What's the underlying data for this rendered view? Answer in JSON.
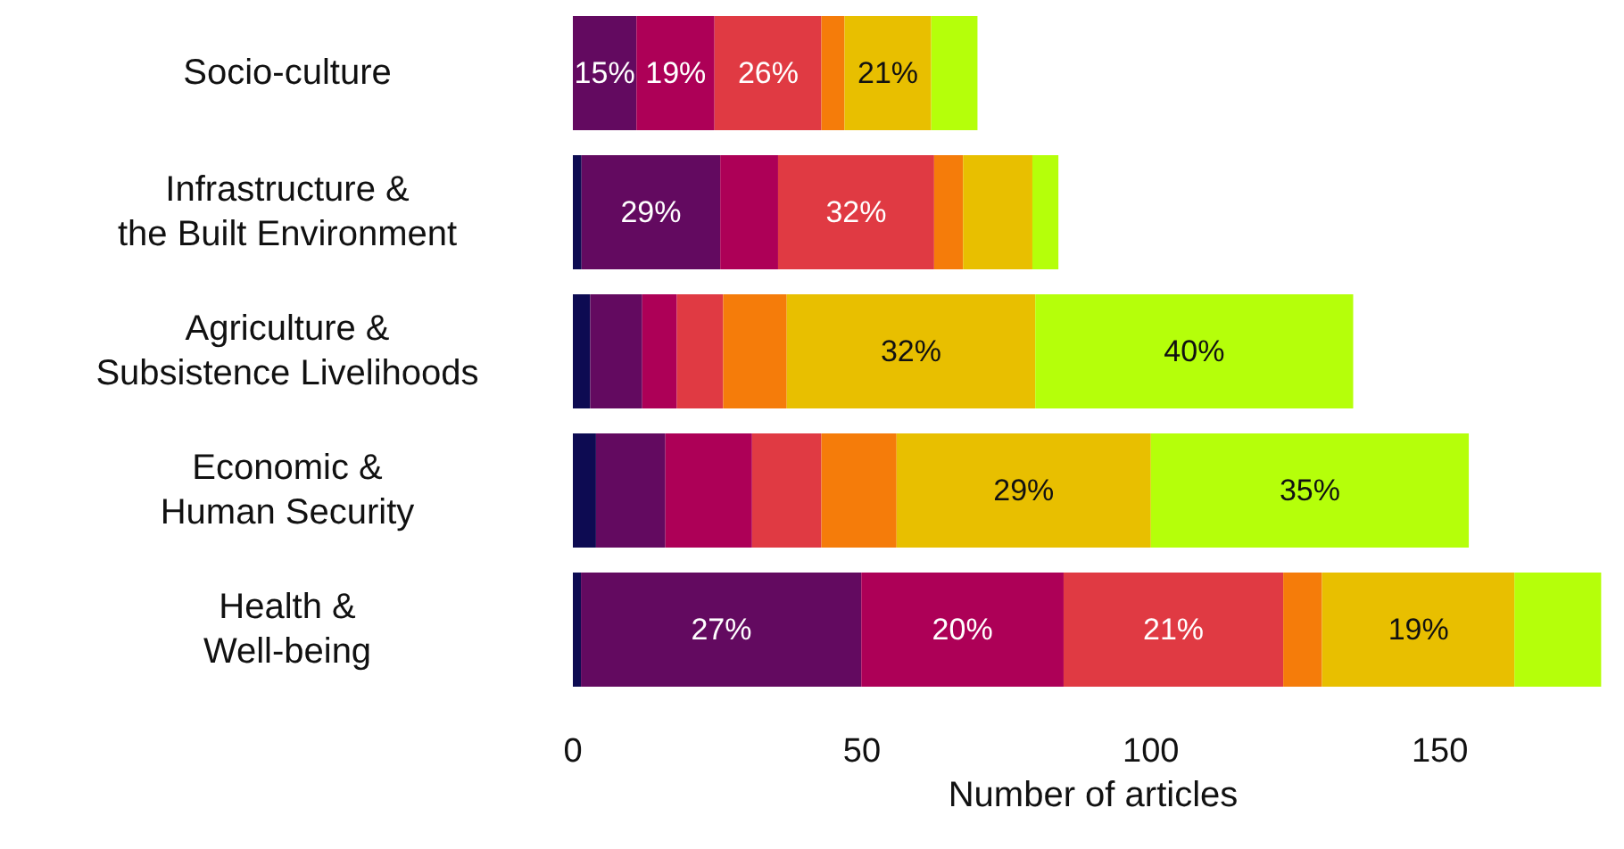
{
  "chart_data": {
    "type": "bar",
    "orientation": "horizontal",
    "stacked": true,
    "xlabel": "Number of articles",
    "categories": [
      "Socio-culture",
      "Infrastructure &\nthe Built Environment",
      "Agriculture &\nSubsistence Livelihoods",
      "Economic &\nHuman Security",
      "Health &\nWell-being"
    ],
    "xlim": [
      0,
      180
    ],
    "xticks": [
      0,
      50,
      100,
      150
    ],
    "grid": false,
    "series": [
      {
        "color": "#0d0b52",
        "values": [
          0,
          1.5,
          3,
          4,
          1.4
        ]
      },
      {
        "color": "#630a60",
        "values": [
          11,
          24,
          9,
          12,
          48.5
        ]
      },
      {
        "color": "#ad0057",
        "values": [
          13.5,
          10,
          6,
          15,
          35
        ]
      },
      {
        "color": "#e03a43",
        "values": [
          18.5,
          27,
          8,
          12,
          38
        ]
      },
      {
        "color": "#f57c0a",
        "values": [
          4,
          5,
          11,
          13,
          6.7
        ]
      },
      {
        "color": "#e8bf00",
        "values": [
          15,
          12,
          43,
          44,
          33.3
        ]
      },
      {
        "color": "#b5ff0a",
        "values": [
          8,
          4.5,
          55,
          55,
          15
        ]
      }
    ],
    "annotations": [
      {
        "text": "15%",
        "x": 5.5,
        "y": "Socio-culture"
      },
      {
        "text": "19%",
        "x": 17.8,
        "y": "Socio-culture"
      },
      {
        "text": "26%",
        "x": 33.8,
        "y": "Socio-culture"
      },
      {
        "text": "21%",
        "x": 54.5,
        "y": "Socio-culture"
      },
      {
        "text": "29%",
        "x": 13.5,
        "y": "Infrastructure &\nthe Built Environment"
      },
      {
        "text": "32%",
        "x": 49,
        "y": "Infrastructure &\nthe Built Environment"
      },
      {
        "text": "32%",
        "x": 58.5,
        "y": "Agriculture &\nSubsistence Livelihoods"
      },
      {
        "text": "40%",
        "x": 107.5,
        "y": "Agriculture &\nSubsistence Livelihoods"
      },
      {
        "text": "29%",
        "x": 78,
        "y": "Economic &\nHuman Security"
      },
      {
        "text": "35%",
        "x": 127.5,
        "y": "Economic &\nHuman Security"
      },
      {
        "text": "27%",
        "x": 25.7,
        "y": "Health &\nWell-being"
      },
      {
        "text": "20%",
        "x": 67.4,
        "y": "Health &\nWell-being"
      },
      {
        "text": "21%",
        "x": 103.9,
        "y": "Health &\nWell-being"
      },
      {
        "text": "19%",
        "x": 146.3,
        "y": "Health &\nWell-being"
      }
    ]
  }
}
